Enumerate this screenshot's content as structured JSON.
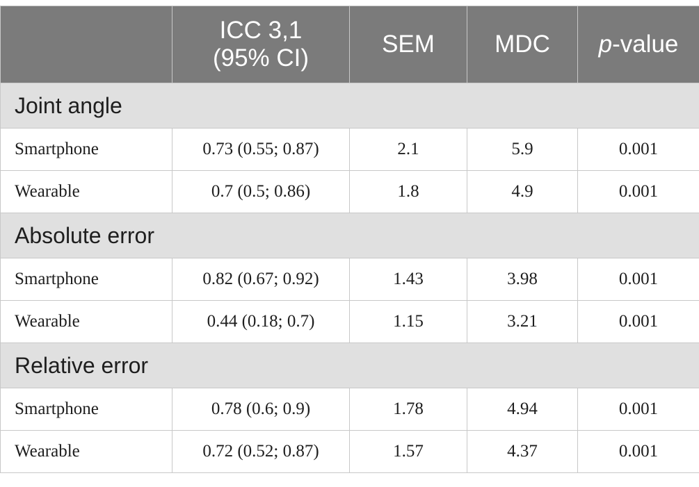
{
  "header": {
    "col0": "",
    "icc_line1": "ICC 3,1",
    "icc_line2": "(95% CI)",
    "sem": "SEM",
    "mdc": "MDC",
    "pvalue_italic": "p",
    "pvalue_rest": "-value"
  },
  "sections": [
    {
      "title": "Joint angle",
      "rows": [
        {
          "label": "Smartphone",
          "icc": "0.73 (0.55; 0.87)",
          "sem": "2.1",
          "mdc": "5.9",
          "p": "0.001"
        },
        {
          "label": "Wearable",
          "icc": "0.7 (0.5; 0.86)",
          "sem": "1.8",
          "mdc": "4.9",
          "p": "0.001"
        }
      ]
    },
    {
      "title": "Absolute error",
      "rows": [
        {
          "label": "Smartphone",
          "icc": "0.82 (0.67; 0.92)",
          "sem": "1.43",
          "mdc": "3.98",
          "p": "0.001"
        },
        {
          "label": "Wearable",
          "icc": "0.44 (0.18; 0.7)",
          "sem": "1.15",
          "mdc": "3.21",
          "p": "0.001"
        }
      ]
    },
    {
      "title": "Relative error",
      "rows": [
        {
          "label": "Smartphone",
          "icc": "0.78 (0.6; 0.9)",
          "sem": "1.78",
          "mdc": "4.94",
          "p": "0.001"
        },
        {
          "label": "Wearable",
          "icc": "0.72 (0.52; 0.87)",
          "sem": "1.57",
          "mdc": "4.37",
          "p": "0.001"
        }
      ]
    }
  ]
}
